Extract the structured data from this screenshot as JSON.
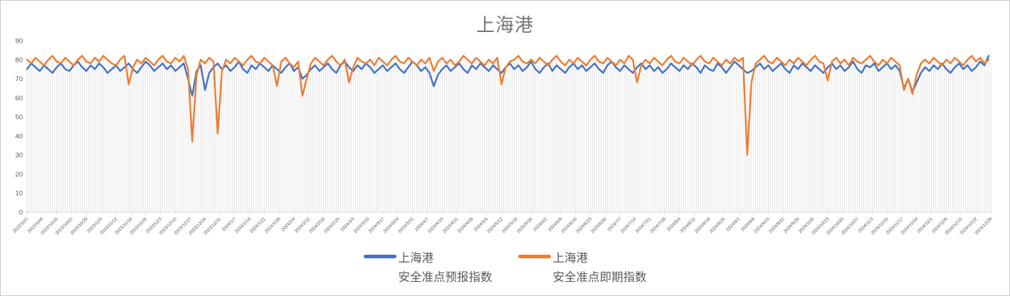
{
  "title": "上海港",
  "legend": {
    "series1": {
      "line1": "上海港",
      "line2": "安全准点预报指数",
      "color": "#4472C4"
    },
    "series2": {
      "line1": "上海港",
      "line2": "安全准点即期指数",
      "color": "#ED7D31"
    }
  },
  "chart_data": {
    "type": "line",
    "title": "上海港",
    "xlabel": "",
    "ylabel": "",
    "ylim": [
      0,
      90
    ],
    "y_ticks": [
      0,
      10,
      20,
      30,
      40,
      50,
      60,
      70,
      80,
      90
    ],
    "grid": "vertical-drop-lines-only",
    "legend_position": "bottom",
    "x_start": "2023/10/1",
    "x_end": "2024/12/29",
    "x_total_points": 456,
    "sample_step_days": 2,
    "x_tick_interval_days": 7,
    "x_label_rotation": -45,
    "x_tick_labels": [
      "2023/10/1",
      "2023/10/8",
      "2023/10/15",
      "2023/10/22",
      "2023/10/29",
      "2023/11/5",
      "2023/11/12",
      "2023/11/19",
      "2023/11/26",
      "2023/12/3",
      "2023/12/10",
      "2023/12/17",
      "2023/12/24",
      "2023/12/31",
      "2024/1/7",
      "2024/1/14",
      "2024/1/21",
      "2024/1/28",
      "2024/2/4",
      "2024/2/11",
      "2024/2/18",
      "2024/2/25",
      "2024/3/3",
      "2024/3/10",
      "2024/3/17",
      "2024/3/24",
      "2024/3/31",
      "2024/4/7",
      "2024/4/14",
      "2024/4/21",
      "2024/4/28",
      "2024/5/5",
      "2024/5/12",
      "2024/5/19",
      "2024/5/26",
      "2024/6/2",
      "2024/6/9",
      "2024/6/16",
      "2024/6/23",
      "2024/6/30",
      "2024/7/7",
      "2024/7/14",
      "2024/7/21",
      "2024/7/28",
      "2024/8/4",
      "2024/8/11",
      "2024/8/18",
      "2024/8/25",
      "2024/9/1",
      "2024/9/8",
      "2024/9/15",
      "2024/9/22",
      "2024/9/29",
      "2024/10/6",
      "2024/10/13",
      "2024/10/20",
      "2024/10/27",
      "2024/11/3",
      "2024/11/10",
      "2024/11/17",
      "2024/11/24",
      "2024/12/1",
      "2024/12/8",
      "2024/12/15",
      "2024/12/22",
      "2024/12/29"
    ],
    "series": [
      {
        "name": "上海港 安全准点预报指数",
        "color": "#4472C4",
        "values": [
          75,
          78,
          76,
          74,
          77,
          75,
          73,
          76,
          78,
          75,
          74,
          77,
          79,
          76,
          74,
          77,
          75,
          78,
          76,
          73,
          75,
          77,
          74,
          76,
          78,
          75,
          73,
          76,
          79,
          77,
          74,
          76,
          78,
          75,
          77,
          74,
          76,
          78,
          70,
          61,
          74,
          77,
          64,
          73,
          76,
          78,
          75,
          77,
          74,
          76,
          79,
          75,
          73,
          77,
          75,
          78,
          76,
          74,
          77,
          75,
          73,
          76,
          78,
          74,
          76,
          70,
          72,
          75,
          77,
          74,
          76,
          78,
          75,
          73,
          77,
          79,
          76,
          74,
          77,
          75,
          78,
          76,
          73,
          75,
          77,
          74,
          76,
          78,
          75,
          73,
          76,
          79,
          77,
          74,
          76,
          73,
          66,
          72,
          75,
          77,
          74,
          76,
          78,
          75,
          73,
          77,
          75,
          78,
          76,
          74,
          77,
          75,
          73,
          76,
          78,
          75,
          77,
          74,
          76,
          79,
          75,
          73,
          76,
          78,
          74,
          77,
          75,
          73,
          76,
          78,
          75,
          77,
          74,
          76,
          78,
          75,
          73,
          77,
          79,
          76,
          74,
          77,
          75,
          73,
          76,
          78,
          75,
          77,
          74,
          76,
          73,
          75,
          78,
          76,
          74,
          77,
          75,
          78,
          76,
          73,
          77,
          75,
          74,
          78,
          76,
          73,
          76,
          79,
          77,
          75,
          73,
          74,
          76,
          78,
          75,
          77,
          74,
          76,
          78,
          75,
          73,
          77,
          75,
          78,
          76,
          74,
          77,
          75,
          73,
          76,
          78,
          75,
          77,
          74,
          76,
          79,
          75,
          73,
          77,
          76,
          78,
          74,
          76,
          78,
          75,
          77,
          74,
          65,
          70,
          63,
          68,
          73,
          76,
          74,
          77,
          75,
          78,
          75,
          73,
          76,
          78,
          75,
          77,
          74,
          76,
          79,
          77,
          82
        ]
      },
      {
        "name": "上海港 安全准点即期指数",
        "color": "#ED7D31",
        "values": [
          80,
          78,
          81,
          79,
          77,
          80,
          82,
          79,
          78,
          81,
          79,
          77,
          80,
          82,
          79,
          78,
          81,
          79,
          82,
          80,
          78,
          77,
          80,
          82,
          67,
          76,
          80,
          78,
          81,
          79,
          77,
          80,
          82,
          79,
          78,
          81,
          79,
          82,
          75,
          37,
          72,
          80,
          78,
          81,
          79,
          41,
          74,
          80,
          78,
          81,
          79,
          77,
          80,
          82,
          79,
          78,
          81,
          79,
          77,
          66,
          79,
          81,
          78,
          76,
          79,
          61,
          70,
          78,
          81,
          79,
          77,
          80,
          82,
          79,
          77,
          80,
          68,
          76,
          81,
          79,
          78,
          80,
          77,
          81,
          79,
          77,
          80,
          82,
          79,
          78,
          81,
          79,
          77,
          80,
          78,
          81,
          74,
          79,
          81,
          78,
          80,
          77,
          79,
          82,
          80,
          78,
          81,
          79,
          77,
          80,
          78,
          81,
          67,
          76,
          79,
          80,
          82,
          79,
          78,
          80,
          78,
          81,
          79,
          77,
          80,
          82,
          79,
          77,
          80,
          78,
          81,
          79,
          77,
          80,
          82,
          79,
          78,
          81,
          79,
          77,
          80,
          78,
          82,
          80,
          68,
          77,
          80,
          78,
          81,
          79,
          77,
          80,
          82,
          79,
          78,
          81,
          79,
          77,
          80,
          82,
          79,
          78,
          81,
          79,
          77,
          80,
          78,
          81,
          79,
          81,
          30,
          68,
          78,
          80,
          82,
          79,
          78,
          81,
          79,
          77,
          80,
          78,
          81,
          79,
          77,
          80,
          82,
          79,
          78,
          69,
          79,
          81,
          78,
          80,
          77,
          81,
          79,
          78,
          80,
          82,
          79,
          77,
          80,
          78,
          81,
          79,
          77,
          64,
          70,
          62,
          72,
          78,
          80,
          78,
          81,
          79,
          77,
          80,
          78,
          81,
          79,
          77,
          80,
          82,
          79,
          81,
          78,
          80
        ]
      }
    ]
  }
}
